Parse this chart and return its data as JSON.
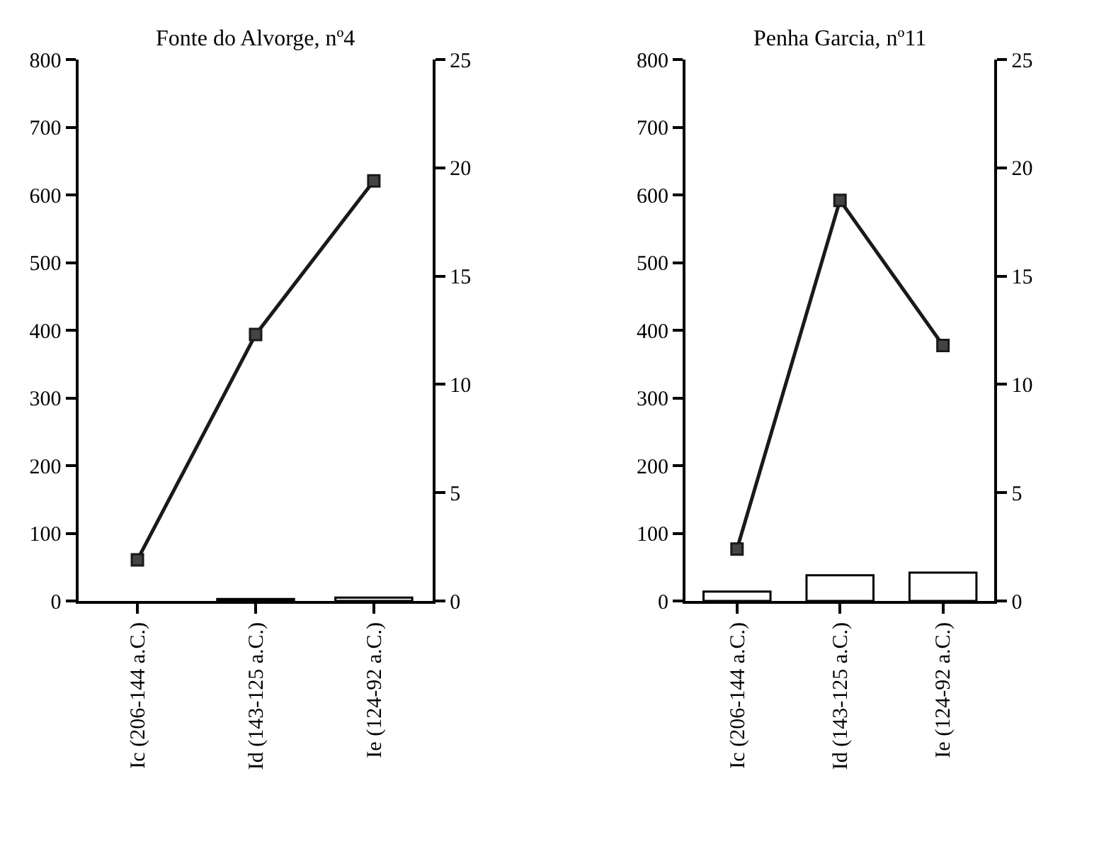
{
  "chart_data": [
    {
      "type": "bar",
      "title": "Fonte do Alvorge, nº4",
      "categories": [
        "Ic (206-144 a.C.)",
        "Id (143-125 a.C.)",
        "Ie (124-92 a.C.)"
      ],
      "series": [
        {
          "color": "#ffffff",
          "values": [
            null,
            3,
            5
          ]
        },
        {
          "type": "line",
          "axis": "y2",
          "color": "#1a1a1a",
          "marker": "square",
          "values": [
            1.9,
            12.3,
            19.4
          ]
        }
      ],
      "ylim": [
        0,
        800
      ],
      "yticks": [
        0,
        100,
        200,
        300,
        400,
        500,
        600,
        700,
        800
      ],
      "y2lim": [
        0,
        25
      ],
      "y2ticks": [
        0,
        5,
        10,
        15,
        20,
        25
      ]
    },
    {
      "type": "bar",
      "title": "Penha Garcia, nº11",
      "categories": [
        "Ic (206-144 a.C.)",
        "Id (143-125 a.C.)",
        "Ie (124-92 a.C.)"
      ],
      "series": [
        {
          "color": "#ffffff",
          "values": [
            14,
            38,
            42
          ]
        },
        {
          "type": "line",
          "axis": "y2",
          "color": "#1a1a1a",
          "marker": "square",
          "values": [
            2.4,
            18.5,
            11.8
          ]
        }
      ],
      "ylim": [
        0,
        800
      ],
      "yticks": [
        0,
        100,
        200,
        300,
        400,
        500,
        600,
        700,
        800
      ],
      "y2lim": [
        0,
        25
      ],
      "y2ticks": [
        0,
        5,
        10,
        15,
        20,
        25
      ]
    }
  ]
}
